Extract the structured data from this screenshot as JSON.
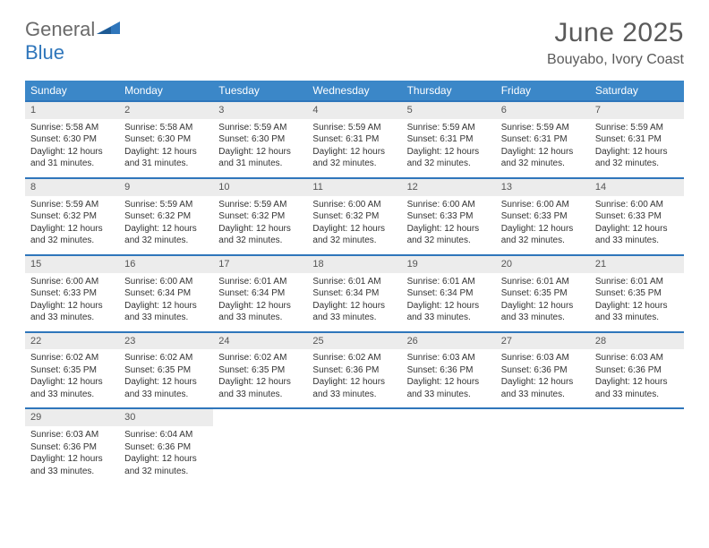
{
  "logo": {
    "general": "General",
    "blue": "Blue"
  },
  "title": "June 2025",
  "location": "Bouyabo, Ivory Coast",
  "weekday_header_bg": "#3b87c8",
  "weekday_header_fg": "#ffffff",
  "row_border_color": "#2f76bb",
  "daynum_bg": "#ececec",
  "weekdays": [
    "Sunday",
    "Monday",
    "Tuesday",
    "Wednesday",
    "Thursday",
    "Friday",
    "Saturday"
  ],
  "weeks": [
    [
      {
        "n": "1",
        "sr": "Sunrise: 5:58 AM",
        "ss": "Sunset: 6:30 PM",
        "dl": "Daylight: 12 hours and 31 minutes."
      },
      {
        "n": "2",
        "sr": "Sunrise: 5:58 AM",
        "ss": "Sunset: 6:30 PM",
        "dl": "Daylight: 12 hours and 31 minutes."
      },
      {
        "n": "3",
        "sr": "Sunrise: 5:59 AM",
        "ss": "Sunset: 6:30 PM",
        "dl": "Daylight: 12 hours and 31 minutes."
      },
      {
        "n": "4",
        "sr": "Sunrise: 5:59 AM",
        "ss": "Sunset: 6:31 PM",
        "dl": "Daylight: 12 hours and 32 minutes."
      },
      {
        "n": "5",
        "sr": "Sunrise: 5:59 AM",
        "ss": "Sunset: 6:31 PM",
        "dl": "Daylight: 12 hours and 32 minutes."
      },
      {
        "n": "6",
        "sr": "Sunrise: 5:59 AM",
        "ss": "Sunset: 6:31 PM",
        "dl": "Daylight: 12 hours and 32 minutes."
      },
      {
        "n": "7",
        "sr": "Sunrise: 5:59 AM",
        "ss": "Sunset: 6:31 PM",
        "dl": "Daylight: 12 hours and 32 minutes."
      }
    ],
    [
      {
        "n": "8",
        "sr": "Sunrise: 5:59 AM",
        "ss": "Sunset: 6:32 PM",
        "dl": "Daylight: 12 hours and 32 minutes."
      },
      {
        "n": "9",
        "sr": "Sunrise: 5:59 AM",
        "ss": "Sunset: 6:32 PM",
        "dl": "Daylight: 12 hours and 32 minutes."
      },
      {
        "n": "10",
        "sr": "Sunrise: 5:59 AM",
        "ss": "Sunset: 6:32 PM",
        "dl": "Daylight: 12 hours and 32 minutes."
      },
      {
        "n": "11",
        "sr": "Sunrise: 6:00 AM",
        "ss": "Sunset: 6:32 PM",
        "dl": "Daylight: 12 hours and 32 minutes."
      },
      {
        "n": "12",
        "sr": "Sunrise: 6:00 AM",
        "ss": "Sunset: 6:33 PM",
        "dl": "Daylight: 12 hours and 32 minutes."
      },
      {
        "n": "13",
        "sr": "Sunrise: 6:00 AM",
        "ss": "Sunset: 6:33 PM",
        "dl": "Daylight: 12 hours and 32 minutes."
      },
      {
        "n": "14",
        "sr": "Sunrise: 6:00 AM",
        "ss": "Sunset: 6:33 PM",
        "dl": "Daylight: 12 hours and 33 minutes."
      }
    ],
    [
      {
        "n": "15",
        "sr": "Sunrise: 6:00 AM",
        "ss": "Sunset: 6:33 PM",
        "dl": "Daylight: 12 hours and 33 minutes."
      },
      {
        "n": "16",
        "sr": "Sunrise: 6:00 AM",
        "ss": "Sunset: 6:34 PM",
        "dl": "Daylight: 12 hours and 33 minutes."
      },
      {
        "n": "17",
        "sr": "Sunrise: 6:01 AM",
        "ss": "Sunset: 6:34 PM",
        "dl": "Daylight: 12 hours and 33 minutes."
      },
      {
        "n": "18",
        "sr": "Sunrise: 6:01 AM",
        "ss": "Sunset: 6:34 PM",
        "dl": "Daylight: 12 hours and 33 minutes."
      },
      {
        "n": "19",
        "sr": "Sunrise: 6:01 AM",
        "ss": "Sunset: 6:34 PM",
        "dl": "Daylight: 12 hours and 33 minutes."
      },
      {
        "n": "20",
        "sr": "Sunrise: 6:01 AM",
        "ss": "Sunset: 6:35 PM",
        "dl": "Daylight: 12 hours and 33 minutes."
      },
      {
        "n": "21",
        "sr": "Sunrise: 6:01 AM",
        "ss": "Sunset: 6:35 PM",
        "dl": "Daylight: 12 hours and 33 minutes."
      }
    ],
    [
      {
        "n": "22",
        "sr": "Sunrise: 6:02 AM",
        "ss": "Sunset: 6:35 PM",
        "dl": "Daylight: 12 hours and 33 minutes."
      },
      {
        "n": "23",
        "sr": "Sunrise: 6:02 AM",
        "ss": "Sunset: 6:35 PM",
        "dl": "Daylight: 12 hours and 33 minutes."
      },
      {
        "n": "24",
        "sr": "Sunrise: 6:02 AM",
        "ss": "Sunset: 6:35 PM",
        "dl": "Daylight: 12 hours and 33 minutes."
      },
      {
        "n": "25",
        "sr": "Sunrise: 6:02 AM",
        "ss": "Sunset: 6:36 PM",
        "dl": "Daylight: 12 hours and 33 minutes."
      },
      {
        "n": "26",
        "sr": "Sunrise: 6:03 AM",
        "ss": "Sunset: 6:36 PM",
        "dl": "Daylight: 12 hours and 33 minutes."
      },
      {
        "n": "27",
        "sr": "Sunrise: 6:03 AM",
        "ss": "Sunset: 6:36 PM",
        "dl": "Daylight: 12 hours and 33 minutes."
      },
      {
        "n": "28",
        "sr": "Sunrise: 6:03 AM",
        "ss": "Sunset: 6:36 PM",
        "dl": "Daylight: 12 hours and 33 minutes."
      }
    ],
    [
      {
        "n": "29",
        "sr": "Sunrise: 6:03 AM",
        "ss": "Sunset: 6:36 PM",
        "dl": "Daylight: 12 hours and 33 minutes."
      },
      {
        "n": "30",
        "sr": "Sunrise: 6:04 AM",
        "ss": "Sunset: 6:36 PM",
        "dl": "Daylight: 12 hours and 32 minutes."
      },
      null,
      null,
      null,
      null,
      null
    ]
  ]
}
